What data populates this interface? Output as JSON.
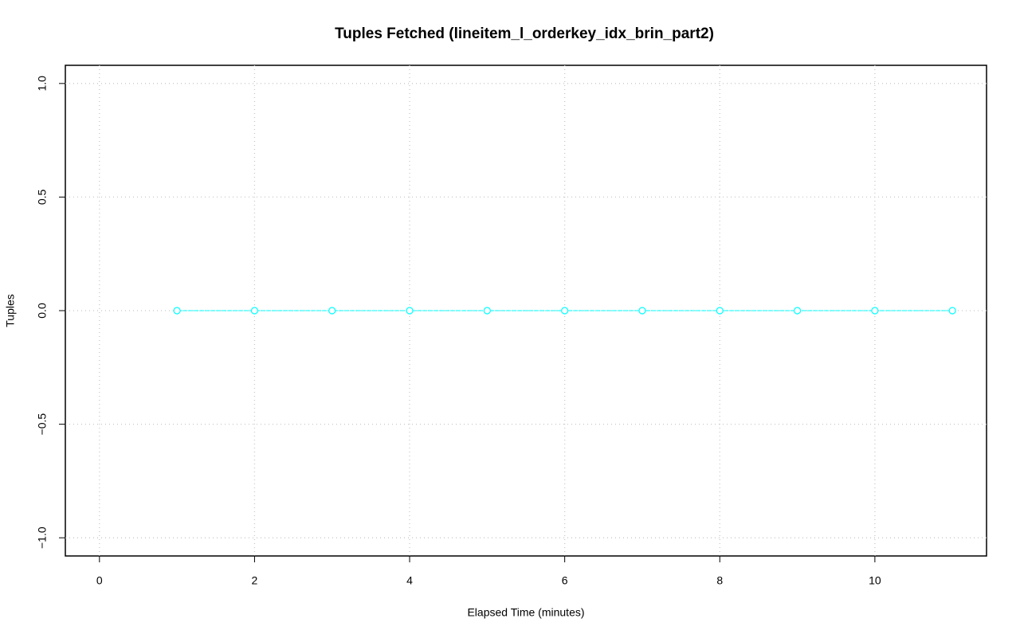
{
  "chart_data": {
    "type": "line",
    "title": "Tuples Fetched (lineitem_l_orderkey_idx_brin_part2)",
    "x_label": "Elapsed Time (minutes)",
    "y_label": "Tuples",
    "x": [
      1,
      2,
      3,
      4,
      5,
      6,
      7,
      8,
      9,
      10,
      11
    ],
    "series": [
      {
        "color": "#00ffff",
        "values": [
          0,
          0,
          0,
          0,
          0,
          0,
          0,
          0,
          0,
          0,
          0
        ]
      }
    ],
    "xlim": [
      -0.44,
      11.44
    ],
    "xticks": [
      0,
      2,
      4,
      6,
      8,
      10
    ],
    "ylim": [
      -1.08,
      1.08
    ],
    "yticks": [
      {
        "value": -1,
        "label": "−1.0"
      },
      {
        "value": -0.5,
        "label": "−0.5"
      },
      {
        "value": 0,
        "label": "0.0"
      },
      {
        "value": 0.5,
        "label": "0.5"
      },
      {
        "value": 1,
        "label": "1.0"
      }
    ],
    "grid": true
  }
}
